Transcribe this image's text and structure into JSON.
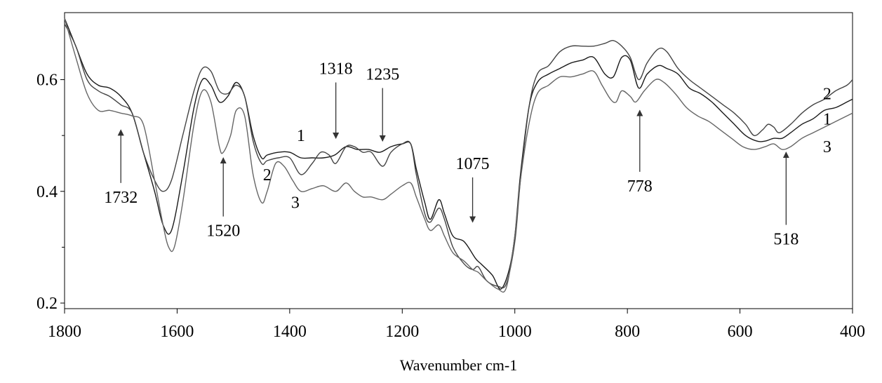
{
  "chart_data": {
    "type": "line",
    "title": "",
    "xlabel": "Wavenumber cm-1",
    "ylabel": "",
    "xlim": [
      1800,
      400
    ],
    "ylim": [
      0.19,
      0.72
    ],
    "x_reversed": true,
    "grid": false,
    "x_ticks": [
      {
        "value": 1800,
        "label": "1800"
      },
      {
        "value": 1600,
        "label": "1600"
      },
      {
        "value": 1400,
        "label": "1400"
      },
      {
        "value": 1200,
        "label": "1200"
      },
      {
        "value": 1000,
        "label": "1000"
      },
      {
        "value": 800,
        "label": "800"
      },
      {
        "value": 600,
        "label": "600"
      },
      {
        "value": 400,
        "label": "400"
      }
    ],
    "y_ticks": [
      {
        "value": 0.6,
        "label": "0.6"
      },
      {
        "value": 0.4,
        "label": "0.4"
      },
      {
        "value": 0.2,
        "label": "0.2"
      }
    ],
    "series": [
      {
        "name": "1",
        "color": "#1a1a1a",
        "points": [
          [
            1800,
            0.71
          ],
          [
            1780,
            0.66
          ],
          [
            1760,
            0.61
          ],
          [
            1740,
            0.59
          ],
          [
            1720,
            0.585
          ],
          [
            1700,
            0.57
          ],
          [
            1680,
            0.54
          ],
          [
            1660,
            0.47
          ],
          [
            1640,
            0.4
          ],
          [
            1625,
            0.34
          ],
          [
            1610,
            0.33
          ],
          [
            1590,
            0.43
          ],
          [
            1570,
            0.55
          ],
          [
            1555,
            0.6
          ],
          [
            1540,
            0.59
          ],
          [
            1525,
            0.56
          ],
          [
            1510,
            0.57
          ],
          [
            1495,
            0.595
          ],
          [
            1480,
            0.57
          ],
          [
            1465,
            0.5
          ],
          [
            1450,
            0.46
          ],
          [
            1440,
            0.465
          ],
          [
            1420,
            0.47
          ],
          [
            1400,
            0.47
          ],
          [
            1380,
            0.46
          ],
          [
            1360,
            0.46
          ],
          [
            1340,
            0.46
          ],
          [
            1320,
            0.465
          ],
          [
            1300,
            0.48
          ],
          [
            1280,
            0.475
          ],
          [
            1260,
            0.475
          ],
          [
            1240,
            0.47
          ],
          [
            1220,
            0.48
          ],
          [
            1200,
            0.485
          ],
          [
            1185,
            0.485
          ],
          [
            1175,
            0.44
          ],
          [
            1160,
            0.38
          ],
          [
            1150,
            0.35
          ],
          [
            1135,
            0.385
          ],
          [
            1125,
            0.36
          ],
          [
            1110,
            0.32
          ],
          [
            1090,
            0.31
          ],
          [
            1070,
            0.28
          ],
          [
            1060,
            0.27
          ],
          [
            1040,
            0.25
          ],
          [
            1025,
            0.225
          ],
          [
            1010,
            0.26
          ],
          [
            1000,
            0.32
          ],
          [
            990,
            0.43
          ],
          [
            975,
            0.55
          ],
          [
            960,
            0.595
          ],
          [
            940,
            0.61
          ],
          [
            920,
            0.62
          ],
          [
            900,
            0.63
          ],
          [
            880,
            0.635
          ],
          [
            860,
            0.64
          ],
          [
            840,
            0.61
          ],
          [
            825,
            0.605
          ],
          [
            810,
            0.64
          ],
          [
            795,
            0.635
          ],
          [
            780,
            0.585
          ],
          [
            765,
            0.61
          ],
          [
            745,
            0.625
          ],
          [
            730,
            0.62
          ],
          [
            710,
            0.61
          ],
          [
            690,
            0.585
          ],
          [
            670,
            0.575
          ],
          [
            650,
            0.56
          ],
          [
            630,
            0.54
          ],
          [
            610,
            0.52
          ],
          [
            590,
            0.5
          ],
          [
            570,
            0.49
          ],
          [
            555,
            0.49
          ],
          [
            540,
            0.495
          ],
          [
            525,
            0.495
          ],
          [
            510,
            0.505
          ],
          [
            490,
            0.52
          ],
          [
            470,
            0.53
          ],
          [
            450,
            0.545
          ],
          [
            430,
            0.55
          ],
          [
            410,
            0.56
          ],
          [
            400,
            0.565
          ]
        ]
      },
      {
        "name": "2",
        "color": "#444444",
        "points": [
          [
            1800,
            0.7
          ],
          [
            1780,
            0.66
          ],
          [
            1760,
            0.6
          ],
          [
            1740,
            0.58
          ],
          [
            1720,
            0.57
          ],
          [
            1700,
            0.555
          ],
          [
            1680,
            0.54
          ],
          [
            1660,
            0.47
          ],
          [
            1640,
            0.42
          ],
          [
            1625,
            0.4
          ],
          [
            1610,
            0.42
          ],
          [
            1590,
            0.5
          ],
          [
            1570,
            0.58
          ],
          [
            1555,
            0.62
          ],
          [
            1540,
            0.615
          ],
          [
            1525,
            0.58
          ],
          [
            1510,
            0.575
          ],
          [
            1495,
            0.59
          ],
          [
            1480,
            0.57
          ],
          [
            1465,
            0.49
          ],
          [
            1450,
            0.45
          ],
          [
            1440,
            0.455
          ],
          [
            1420,
            0.46
          ],
          [
            1400,
            0.46
          ],
          [
            1380,
            0.43
          ],
          [
            1360,
            0.45
          ],
          [
            1345,
            0.47
          ],
          [
            1330,
            0.465
          ],
          [
            1318,
            0.45
          ],
          [
            1300,
            0.48
          ],
          [
            1285,
            0.48
          ],
          [
            1270,
            0.47
          ],
          [
            1255,
            0.47
          ],
          [
            1235,
            0.445
          ],
          [
            1220,
            0.47
          ],
          [
            1200,
            0.485
          ],
          [
            1185,
            0.485
          ],
          [
            1175,
            0.43
          ],
          [
            1160,
            0.36
          ],
          [
            1150,
            0.345
          ],
          [
            1135,
            0.37
          ],
          [
            1125,
            0.35
          ],
          [
            1110,
            0.3
          ],
          [
            1090,
            0.27
          ],
          [
            1075,
            0.26
          ],
          [
            1065,
            0.265
          ],
          [
            1050,
            0.24
          ],
          [
            1030,
            0.23
          ],
          [
            1015,
            0.235
          ],
          [
            1000,
            0.31
          ],
          [
            990,
            0.42
          ],
          [
            975,
            0.55
          ],
          [
            960,
            0.61
          ],
          [
            940,
            0.625
          ],
          [
            920,
            0.65
          ],
          [
            900,
            0.66
          ],
          [
            880,
            0.66
          ],
          [
            860,
            0.66
          ],
          [
            840,
            0.665
          ],
          [
            825,
            0.67
          ],
          [
            810,
            0.66
          ],
          [
            795,
            0.64
          ],
          [
            780,
            0.6
          ],
          [
            765,
            0.63
          ],
          [
            745,
            0.655
          ],
          [
            730,
            0.65
          ],
          [
            710,
            0.62
          ],
          [
            690,
            0.6
          ],
          [
            670,
            0.585
          ],
          [
            650,
            0.57
          ],
          [
            630,
            0.555
          ],
          [
            610,
            0.54
          ],
          [
            590,
            0.52
          ],
          [
            575,
            0.5
          ],
          [
            560,
            0.51
          ],
          [
            550,
            0.52
          ],
          [
            540,
            0.515
          ],
          [
            530,
            0.505
          ],
          [
            510,
            0.52
          ],
          [
            490,
            0.54
          ],
          [
            470,
            0.555
          ],
          [
            450,
            0.565
          ],
          [
            430,
            0.58
          ],
          [
            410,
            0.59
          ],
          [
            400,
            0.6
          ]
        ]
      },
      {
        "name": "3",
        "color": "#666666",
        "points": [
          [
            1800,
            0.71
          ],
          [
            1780,
            0.64
          ],
          [
            1760,
            0.575
          ],
          [
            1740,
            0.545
          ],
          [
            1720,
            0.545
          ],
          [
            1700,
            0.54
          ],
          [
            1680,
            0.535
          ],
          [
            1660,
            0.52
          ],
          [
            1640,
            0.42
          ],
          [
            1625,
            0.34
          ],
          [
            1615,
            0.3
          ],
          [
            1605,
            0.3
          ],
          [
            1590,
            0.38
          ],
          [
            1570,
            0.52
          ],
          [
            1555,
            0.58
          ],
          [
            1540,
            0.56
          ],
          [
            1525,
            0.48
          ],
          [
            1518,
            0.47
          ],
          [
            1505,
            0.5
          ],
          [
            1495,
            0.545
          ],
          [
            1480,
            0.535
          ],
          [
            1465,
            0.43
          ],
          [
            1450,
            0.38
          ],
          [
            1440,
            0.4
          ],
          [
            1425,
            0.45
          ],
          [
            1410,
            0.445
          ],
          [
            1395,
            0.42
          ],
          [
            1380,
            0.4
          ],
          [
            1360,
            0.405
          ],
          [
            1340,
            0.41
          ],
          [
            1318,
            0.4
          ],
          [
            1300,
            0.415
          ],
          [
            1285,
            0.4
          ],
          [
            1270,
            0.39
          ],
          [
            1255,
            0.39
          ],
          [
            1235,
            0.385
          ],
          [
            1220,
            0.395
          ],
          [
            1200,
            0.41
          ],
          [
            1185,
            0.415
          ],
          [
            1175,
            0.39
          ],
          [
            1160,
            0.35
          ],
          [
            1150,
            0.33
          ],
          [
            1135,
            0.34
          ],
          [
            1125,
            0.32
          ],
          [
            1110,
            0.29
          ],
          [
            1090,
            0.275
          ],
          [
            1075,
            0.26
          ],
          [
            1065,
            0.255
          ],
          [
            1050,
            0.24
          ],
          [
            1030,
            0.225
          ],
          [
            1015,
            0.228
          ],
          [
            1000,
            0.32
          ],
          [
            990,
            0.42
          ],
          [
            975,
            0.52
          ],
          [
            960,
            0.575
          ],
          [
            940,
            0.59
          ],
          [
            920,
            0.605
          ],
          [
            900,
            0.605
          ],
          [
            880,
            0.61
          ],
          [
            860,
            0.615
          ],
          [
            845,
            0.59
          ],
          [
            830,
            0.565
          ],
          [
            820,
            0.56
          ],
          [
            810,
            0.58
          ],
          [
            795,
            0.57
          ],
          [
            785,
            0.56
          ],
          [
            770,
            0.58
          ],
          [
            750,
            0.6
          ],
          [
            735,
            0.595
          ],
          [
            715,
            0.575
          ],
          [
            695,
            0.55
          ],
          [
            675,
            0.535
          ],
          [
            655,
            0.525
          ],
          [
            635,
            0.51
          ],
          [
            615,
            0.495
          ],
          [
            595,
            0.48
          ],
          [
            575,
            0.475
          ],
          [
            555,
            0.48
          ],
          [
            540,
            0.485
          ],
          [
            525,
            0.475
          ],
          [
            510,
            0.48
          ],
          [
            490,
            0.495
          ],
          [
            470,
            0.505
          ],
          [
            450,
            0.515
          ],
          [
            430,
            0.525
          ],
          [
            410,
            0.535
          ],
          [
            400,
            0.54
          ]
        ]
      }
    ],
    "curve_labels": [
      {
        "text": "1",
        "x": 1380,
        "y": 0.5
      },
      {
        "text": "2",
        "x": 1440,
        "y": 0.43
      },
      {
        "text": "3",
        "x": 1390,
        "y": 0.38
      },
      {
        "text": "2",
        "x": 445,
        "y": 0.575
      },
      {
        "text": "1",
        "x": 445,
        "y": 0.53
      },
      {
        "text": "3",
        "x": 445,
        "y": 0.48
      }
    ],
    "annotations": [
      {
        "label": "1732",
        "x": 1700,
        "label_y": 0.39,
        "arrow_from_y": 0.415,
        "arrow_to_y": 0.51,
        "direction": "up"
      },
      {
        "label": "1520",
        "x": 1518,
        "label_y": 0.33,
        "arrow_from_y": 0.355,
        "arrow_to_y": 0.46,
        "direction": "up"
      },
      {
        "label": "1318",
        "x": 1318,
        "label_y": 0.62,
        "arrow_from_y": 0.595,
        "arrow_to_y": 0.495,
        "direction": "down"
      },
      {
        "label": "1235",
        "x": 1235,
        "label_y": 0.61,
        "arrow_from_y": 0.585,
        "arrow_to_y": 0.49,
        "direction": "down"
      },
      {
        "label": "1075",
        "x": 1075,
        "label_y": 0.45,
        "arrow_from_y": 0.425,
        "arrow_to_y": 0.345,
        "direction": "down"
      },
      {
        "label": "778",
        "x": 778,
        "label_y": 0.41,
        "arrow_from_y": 0.435,
        "arrow_to_y": 0.545,
        "direction": "up"
      },
      {
        "label": "518",
        "x": 518,
        "label_y": 0.315,
        "arrow_from_y": 0.34,
        "arrow_to_y": 0.47,
        "direction": "up"
      }
    ]
  }
}
